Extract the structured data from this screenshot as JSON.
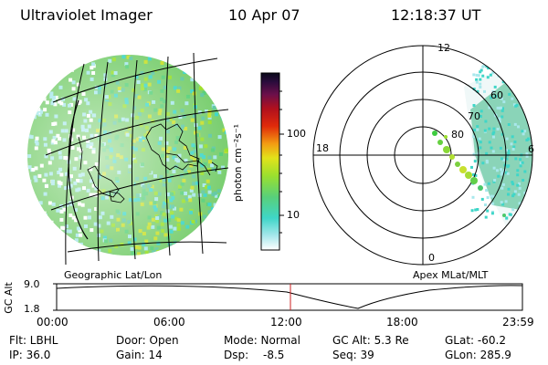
{
  "header": {
    "instrument": "Ultraviolet Imager",
    "date": "10 Apr 07",
    "time": "12:18:37 UT"
  },
  "left_panel": {
    "label": "Geographic Lat/Lon"
  },
  "colorbar": {
    "unit_label": "photon cm⁻²s⁻¹",
    "ticks": [
      "100",
      "10"
    ],
    "colors": [
      "#ffffff",
      "#a8e8ec",
      "#3fd6c8",
      "#58d07a",
      "#9be02e",
      "#e2e21a",
      "#f39c12",
      "#e02a0a",
      "#b0101e",
      "#6a0f4a",
      "#2a0c3c",
      "#0a0a1a"
    ]
  },
  "polar_panel": {
    "label": "Apex MLat/MLT",
    "mlt_labels": {
      "top": "12",
      "left": "18",
      "right": "6",
      "bottom": "0"
    },
    "lat_labels": [
      "60",
      "70",
      "80"
    ]
  },
  "altitude_plot": {
    "ylabel": "GC Alt",
    "yticks": [
      "9.0",
      "1.8"
    ],
    "xticks": [
      "00:00",
      "06:00",
      "12:00",
      "18:00",
      "23:59"
    ],
    "marker_color": "#cc2222"
  },
  "status": {
    "flt": "Flt: LBHL",
    "ip": "IP: 36.0",
    "door": "Door: Open",
    "gain": "Gain: 14",
    "mode": "Mode: Normal",
    "dsp_label": "Dsp:",
    "dsp_value": "-8.5",
    "gc_alt": "GC Alt: 5.3 Re",
    "seq": "Seq: 39",
    "glat": "GLat: -60.2",
    "glon": "GLon: 285.9"
  }
}
